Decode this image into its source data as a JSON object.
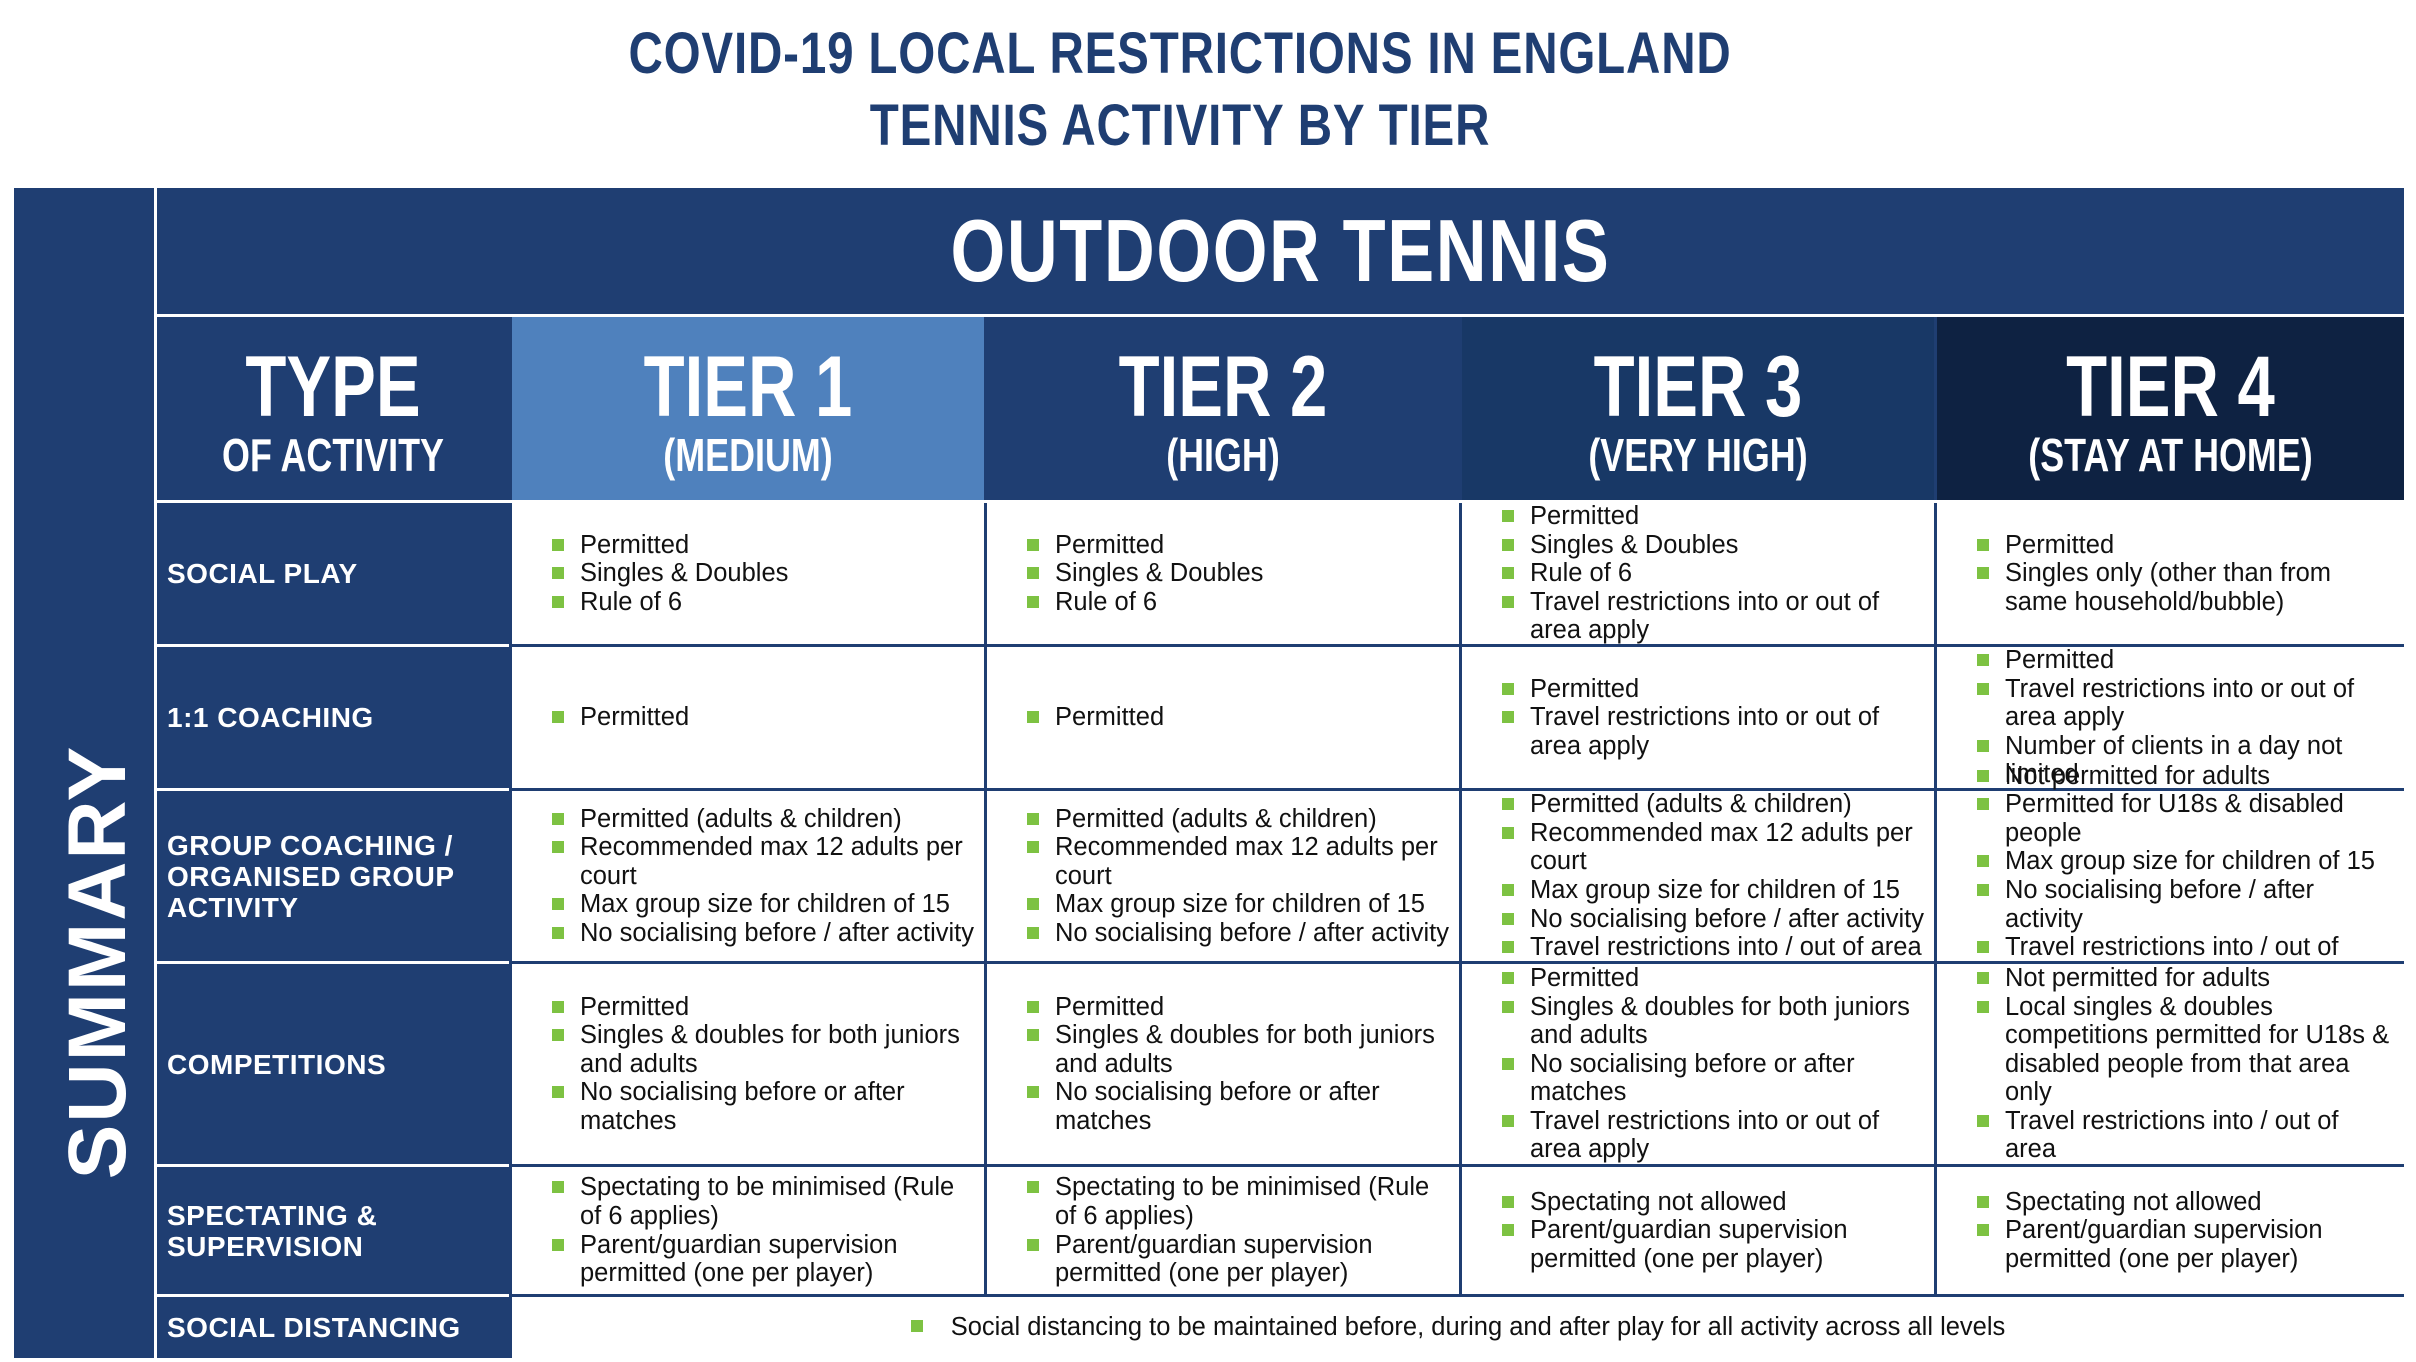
{
  "title": {
    "line1": "COVID-19 LOCAL RESTRICTIONS IN ENGLAND",
    "line2": "TENNIS ACTIVITY BY TIER"
  },
  "sidebar_label": "SUMMARY",
  "section_heading": "OUTDOOR TENNIS",
  "columns": [
    {
      "big": "TYPE",
      "small": "OF ACTIVITY",
      "color": "#1f3e72"
    },
    {
      "big": "TIER 1",
      "small": "(MEDIUM)",
      "color": "#4f81bd"
    },
    {
      "big": "TIER 2",
      "small": "(HIGH)",
      "color": "#1f3e72"
    },
    {
      "big": "TIER 3",
      "small": "(VERY HIGH)",
      "color": "#183866"
    },
    {
      "big": "TIER 4",
      "small": "(STAY AT HOME)",
      "color": "#0e2242"
    }
  ],
  "rows": [
    {
      "label": "SOCIAL PLAY",
      "tiers": [
        [
          "Permitted",
          "Singles & Doubles",
          "Rule of 6"
        ],
        [
          "Permitted",
          "Singles & Doubles",
          "Rule of 6"
        ],
        [
          "Permitted",
          "Singles & Doubles",
          "Rule of 6",
          "Travel restrictions into or out of area apply"
        ],
        [
          "Permitted",
          "Singles only (other than from same household/bubble)"
        ]
      ]
    },
    {
      "label": "1:1 COACHING",
      "tiers": [
        [
          "Permitted"
        ],
        [
          "Permitted"
        ],
        [
          "Permitted",
          "Travel restrictions into or out of area apply"
        ],
        [
          "Permitted",
          "Travel restrictions into or out of area apply",
          "Number of clients in a day not limited"
        ]
      ]
    },
    {
      "label": "GROUP COACHING / ORGANISED GROUP ACTIVITY",
      "tiers": [
        [
          "Permitted (adults & children)",
          "Recommended max 12 adults per court",
          "Max group size for children of 15",
          "No socialising before / after activity"
        ],
        [
          "Permitted (adults & children)",
          "Recommended max 12 adults per court",
          "Max group size for children of 15",
          "No socialising before / after activity"
        ],
        [
          "Permitted (adults & children)",
          "Recommended max 12 adults per court",
          "Max group size for children of 15",
          "No socialising before / after activity",
          "Travel restrictions into / out of area"
        ],
        [
          "Not permitted for adults",
          "Permitted for U18s & disabled people",
          "Max group size for children of 15",
          "No socialising before / after activity",
          "Travel restrictions into / out of area"
        ]
      ]
    },
    {
      "label": "COMPETITIONS",
      "tiers": [
        [
          "Permitted",
          "Singles & doubles for both juniors and adults",
          "No socialising before or after matches"
        ],
        [
          "Permitted",
          "Singles & doubles for both juniors and adults",
          "No socialising before or after matches"
        ],
        [
          "Permitted",
          "Singles & doubles for both juniors and adults",
          "No socialising before or after matches",
          "Travel restrictions into or out of area apply"
        ],
        [
          "Not permitted for adults",
          "Local singles & doubles competitions permitted for U18s & disabled people from that area only",
          "Travel restrictions into / out of area"
        ]
      ]
    },
    {
      "label": "SPECTATING & SUPERVISION",
      "tiers": [
        [
          "Spectating to be minimised (Rule of 6 applies)",
          "Parent/guardian supervision permitted (one per player)"
        ],
        [
          "Spectating to be minimised (Rule of 6 applies)",
          "Parent/guardian supervision permitted (one per player)"
        ],
        [
          "Spectating not allowed",
          "Parent/guardian supervision permitted (one per player)"
        ],
        [
          "Spectating not allowed",
          "Parent/guardian supervision permitted (one per player)"
        ]
      ]
    }
  ],
  "social_distancing": {
    "label": "SOCIAL DISTANCING",
    "text": "Social distancing to be maintained before, during and after play for all activity across all levels"
  }
}
